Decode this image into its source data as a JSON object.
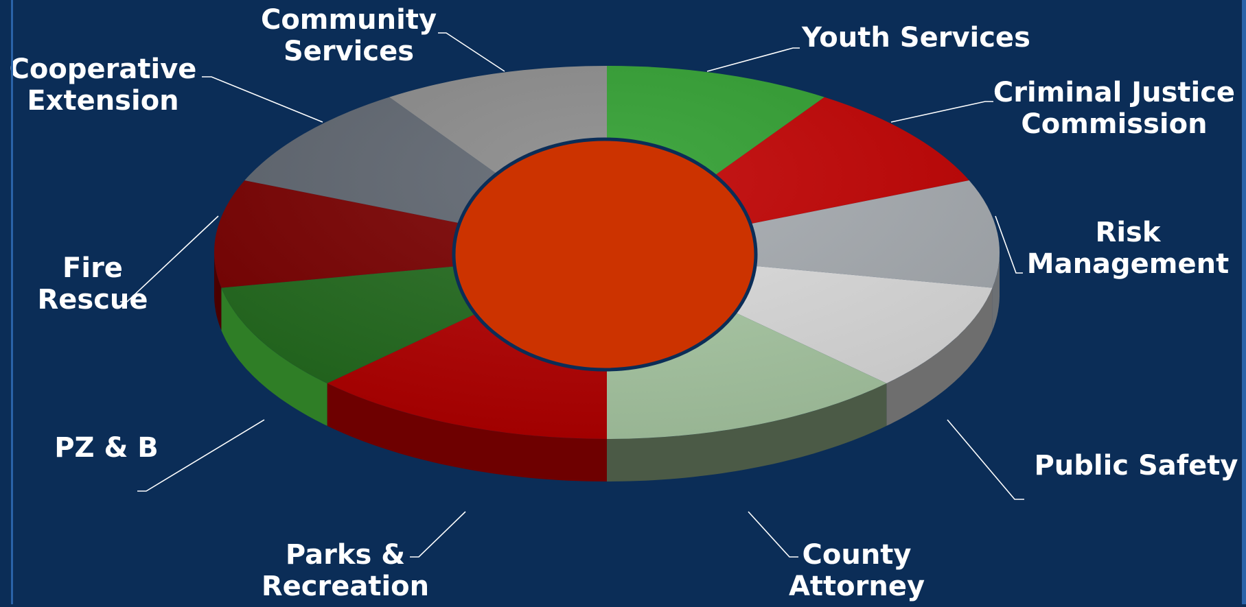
{
  "chart_data": {
    "type": "pie",
    "style": "3d-donut",
    "title": "",
    "slices": [
      {
        "label": "Youth Services",
        "value": 1,
        "top": "#2f9e2f",
        "side": "#1f6a1f"
      },
      {
        "label": "Criminal Justice Commission",
        "value": 1,
        "top": "#c00000",
        "side": "#7a0000"
      },
      {
        "label": "Risk Management",
        "value": 1,
        "top": "#a6abb0",
        "side": "#6c7074"
      },
      {
        "label": "Public Safety",
        "value": 1,
        "top": "#dcdcdc",
        "side": "#6e6e6e"
      },
      {
        "label": "County Attorney",
        "value": 1.35,
        "top": "#a9c9a4",
        "side": "#4b5a46"
      },
      {
        "label": "Parks & Recreation",
        "value": 1.35,
        "top": "#b30000",
        "side": "#6e0000"
      },
      {
        "label": "PZ & B",
        "value": 1,
        "top": "#236b1e",
        "side": "#2f7e26"
      },
      {
        "label": "Fire Rescue",
        "value": 1,
        "top": "#7a0000",
        "side": "#4a0000"
      },
      {
        "label": "Cooperative Extension",
        "value": 1,
        "top": "#5f6670",
        "side": "#3b4048"
      },
      {
        "label": "Community Services",
        "value": 1,
        "top": "#8a8a8a",
        "side": "#555555"
      }
    ],
    "hole_color": "#cc3300",
    "hole_border": "#0b2d57",
    "legend": "none"
  },
  "labels": [
    {
      "key": "youth",
      "lines": [
        "Youth Services"
      ]
    },
    {
      "key": "criminal",
      "lines": [
        "Criminal Justice",
        "Commission"
      ]
    },
    {
      "key": "risk",
      "lines": [
        "Risk",
        "Management"
      ]
    },
    {
      "key": "public",
      "lines": [
        "Public Safety"
      ]
    },
    {
      "key": "county",
      "lines": [
        "County",
        "Attorney"
      ]
    },
    {
      "key": "parks",
      "lines": [
        "Parks &",
        "Recreation"
      ]
    },
    {
      "key": "pzb",
      "lines": [
        "PZ & B"
      ]
    },
    {
      "key": "fire",
      "lines": [
        "Fire",
        "Rescue"
      ]
    },
    {
      "key": "coop",
      "lines": [
        "Cooperative",
        "Extension"
      ]
    },
    {
      "key": "community",
      "lines": [
        "Community",
        "Services"
      ]
    }
  ],
  "colors": {
    "background": "#0b2d57",
    "accent_rule": "#2a63a8",
    "leader": "#ffffff"
  }
}
